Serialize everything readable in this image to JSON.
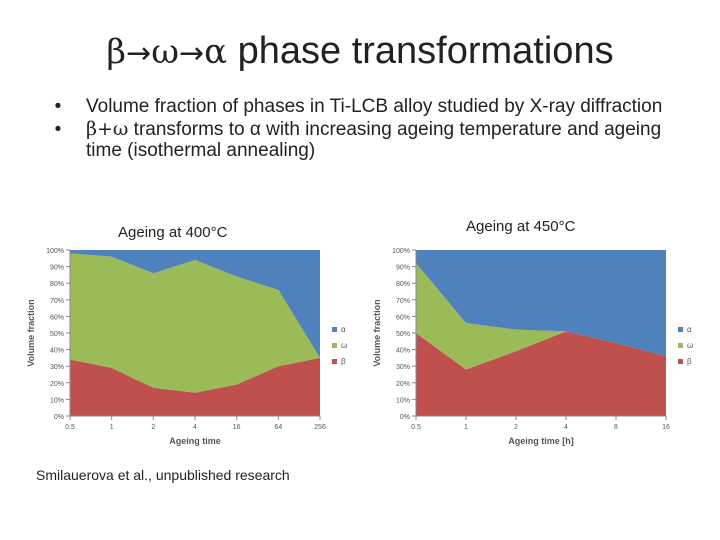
{
  "slide": {
    "title_greek_1": "β",
    "title_arrow_1": "→",
    "title_greek_2": "ω",
    "title_arrow_2": "→",
    "title_greek_3": "α",
    "title_text": " phase transformations",
    "bullets": [
      {
        "marker": "•",
        "prefix": "",
        "text": "Volume fraction of phases in Ti-LCB alloy studied by X-ray diffraction"
      },
      {
        "marker": "•",
        "prefix": "β+ω",
        "text": " transforms to α with increasing ageing temperature and ageing time (isothermal annealing)"
      }
    ],
    "credit": "Smilauerova et al., unpublished research"
  },
  "chart_data": [
    {
      "type": "area",
      "stacked": true,
      "caption": "Ageing at 400°C",
      "xlabel": "Ageing time",
      "ylabel": "Volume fraction",
      "categories": [
        "0.5",
        "1",
        "2",
        "4",
        "16",
        "64",
        "256"
      ],
      "yticks": [
        "0%",
        "10%",
        "20%",
        "30%",
        "40%",
        "50%",
        "60%",
        "70%",
        "80%",
        "90%",
        "100%"
      ],
      "ylim": [
        0,
        100
      ],
      "legend_position": "right",
      "series": [
        {
          "name": "β",
          "color": "#c0504d",
          "values": [
            34,
            29,
            17,
            14,
            19,
            30,
            35
          ]
        },
        {
          "name": "ω",
          "color": "#9bbb59",
          "values": [
            64,
            67,
            69,
            80,
            65,
            46,
            0
          ]
        },
        {
          "name": "α",
          "color": "#4f81bd",
          "values": [
            2,
            4,
            14,
            6,
            16,
            24,
            65
          ]
        }
      ]
    },
    {
      "type": "area",
      "stacked": true,
      "caption": "Ageing at  450°C",
      "xlabel": "Ageing time [h]",
      "ylabel": "Volume fraction",
      "categories": [
        "0.5",
        "1",
        "2",
        "4",
        "8",
        "16"
      ],
      "yticks": [
        "0%",
        "10%",
        "20%",
        "30%",
        "40%",
        "50%",
        "60%",
        "70%",
        "80%",
        "90%",
        "100%"
      ],
      "ylim": [
        0,
        100
      ],
      "legend_position": "right",
      "series": [
        {
          "name": "β",
          "color": "#c0504d",
          "values": [
            50,
            28,
            39,
            51,
            44,
            36
          ]
        },
        {
          "name": "ω",
          "color": "#9bbb59",
          "values": [
            42,
            28,
            13,
            0,
            0,
            0
          ]
        },
        {
          "name": "α",
          "color": "#4f81bd",
          "values": [
            8,
            44,
            48,
            49,
            56,
            64
          ]
        }
      ]
    }
  ]
}
